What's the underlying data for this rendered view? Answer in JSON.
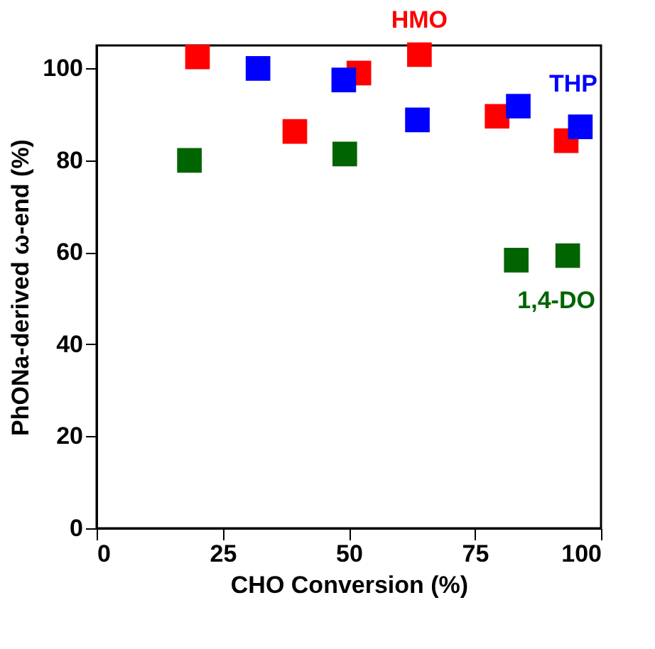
{
  "chart_data": {
    "type": "scatter",
    "xlabel": "CHO Conversion (%)",
    "ylabel": "PhONa-derived ω-end (%)",
    "xlim": [
      0,
      100
    ],
    "xticks": [
      0,
      25,
      50,
      75,
      100
    ],
    "ylim": [
      0,
      105
    ],
    "yticks": [
      0,
      20,
      40,
      60,
      80,
      100
    ],
    "grid": false,
    "legend": false,
    "marker": "square",
    "series": [
      {
        "name": "HMO",
        "color": "#ff0000",
        "x": [
          20,
          39.3,
          52,
          64,
          79.4,
          93.1
        ],
        "values": [
          102.5,
          86.3,
          99,
          103,
          89.6,
          84.3
        ]
      },
      {
        "name": "THP",
        "color": "#0000ff",
        "x": [
          32,
          49,
          63.6,
          83.6,
          95.9
        ],
        "values": [
          100,
          97.5,
          88.8,
          91.8,
          87.3
        ]
      },
      {
        "name": "1,4-DO",
        "color": "#006400",
        "x": [
          18.4,
          49.2,
          83.2,
          93.4
        ],
        "values": [
          80,
          81.4,
          58.3,
          59.3
        ]
      }
    ]
  }
}
